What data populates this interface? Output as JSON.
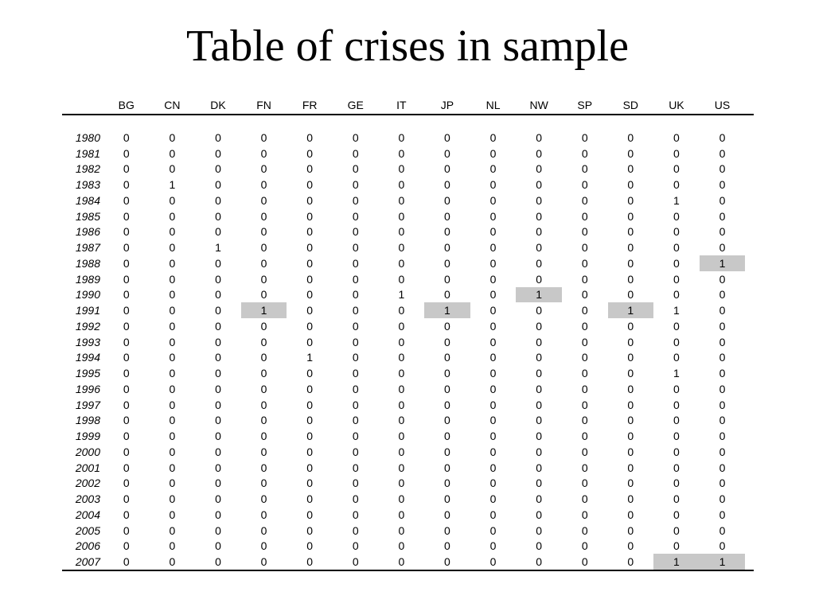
{
  "title": "Table of crises in sample",
  "countries": [
    "BG",
    "CN",
    "DK",
    "FN",
    "FR",
    "GE",
    "IT",
    "JP",
    "NL",
    "NW",
    "SP",
    "SD",
    "UK",
    "US"
  ],
  "rows": [
    {
      "year": "1980",
      "values": [
        "0",
        "0",
        "0",
        "0",
        "0",
        "0",
        "0",
        "0",
        "0",
        "0",
        "0",
        "0",
        "0",
        "0"
      ],
      "highlight": []
    },
    {
      "year": "1981",
      "values": [
        "0",
        "0",
        "0",
        "0",
        "0",
        "0",
        "0",
        "0",
        "0",
        "0",
        "0",
        "0",
        "0",
        "0"
      ],
      "highlight": []
    },
    {
      "year": "1982",
      "values": [
        "0",
        "0",
        "0",
        "0",
        "0",
        "0",
        "0",
        "0",
        "0",
        "0",
        "0",
        "0",
        "0",
        "0"
      ],
      "highlight": []
    },
    {
      "year": "1983",
      "values": [
        "0",
        "1",
        "0",
        "0",
        "0",
        "0",
        "0",
        "0",
        "0",
        "0",
        "0",
        "0",
        "0",
        "0"
      ],
      "highlight": []
    },
    {
      "year": "1984",
      "values": [
        "0",
        "0",
        "0",
        "0",
        "0",
        "0",
        "0",
        "0",
        "0",
        "0",
        "0",
        "0",
        "1",
        "0"
      ],
      "highlight": []
    },
    {
      "year": "1985",
      "values": [
        "0",
        "0",
        "0",
        "0",
        "0",
        "0",
        "0",
        "0",
        "0",
        "0",
        "0",
        "0",
        "0",
        "0"
      ],
      "highlight": []
    },
    {
      "year": "1986",
      "values": [
        "0",
        "0",
        "0",
        "0",
        "0",
        "0",
        "0",
        "0",
        "0",
        "0",
        "0",
        "0",
        "0",
        "0"
      ],
      "highlight": []
    },
    {
      "year": "1987",
      "values": [
        "0",
        "0",
        "1",
        "0",
        "0",
        "0",
        "0",
        "0",
        "0",
        "0",
        "0",
        "0",
        "0",
        "0"
      ],
      "highlight": []
    },
    {
      "year": "1988",
      "values": [
        "0",
        "0",
        "0",
        "0",
        "0",
        "0",
        "0",
        "0",
        "0",
        "0",
        "0",
        "0",
        "0",
        "1"
      ],
      "highlight": [
        13
      ]
    },
    {
      "year": "1989",
      "values": [
        "0",
        "0",
        "0",
        "0",
        "0",
        "0",
        "0",
        "0",
        "0",
        "0",
        "0",
        "0",
        "0",
        "0"
      ],
      "highlight": []
    },
    {
      "year": "1990",
      "values": [
        "0",
        "0",
        "0",
        "0",
        "0",
        "0",
        "1",
        "0",
        "0",
        "1",
        "0",
        "0",
        "0",
        "0"
      ],
      "highlight": [
        9
      ]
    },
    {
      "year": "1991",
      "values": [
        "0",
        "0",
        "0",
        "1",
        "0",
        "0",
        "0",
        "1",
        "0",
        "0",
        "0",
        "1",
        "1",
        "0"
      ],
      "highlight": [
        3,
        7,
        11
      ]
    },
    {
      "year": "1992",
      "values": [
        "0",
        "0",
        "0",
        "0",
        "0",
        "0",
        "0",
        "0",
        "0",
        "0",
        "0",
        "0",
        "0",
        "0"
      ],
      "highlight": []
    },
    {
      "year": "1993",
      "values": [
        "0",
        "0",
        "0",
        "0",
        "0",
        "0",
        "0",
        "0",
        "0",
        "0",
        "0",
        "0",
        "0",
        "0"
      ],
      "highlight": []
    },
    {
      "year": "1994",
      "values": [
        "0",
        "0",
        "0",
        "0",
        "1",
        "0",
        "0",
        "0",
        "0",
        "0",
        "0",
        "0",
        "0",
        "0"
      ],
      "highlight": []
    },
    {
      "year": "1995",
      "values": [
        "0",
        "0",
        "0",
        "0",
        "0",
        "0",
        "0",
        "0",
        "0",
        "0",
        "0",
        "0",
        "1",
        "0"
      ],
      "highlight": []
    },
    {
      "year": "1996",
      "values": [
        "0",
        "0",
        "0",
        "0",
        "0",
        "0",
        "0",
        "0",
        "0",
        "0",
        "0",
        "0",
        "0",
        "0"
      ],
      "highlight": []
    },
    {
      "year": "1997",
      "values": [
        "0",
        "0",
        "0",
        "0",
        "0",
        "0",
        "0",
        "0",
        "0",
        "0",
        "0",
        "0",
        "0",
        "0"
      ],
      "highlight": []
    },
    {
      "year": "1998",
      "values": [
        "0",
        "0",
        "0",
        "0",
        "0",
        "0",
        "0",
        "0",
        "0",
        "0",
        "0",
        "0",
        "0",
        "0"
      ],
      "highlight": []
    },
    {
      "year": "1999",
      "values": [
        "0",
        "0",
        "0",
        "0",
        "0",
        "0",
        "0",
        "0",
        "0",
        "0",
        "0",
        "0",
        "0",
        "0"
      ],
      "highlight": []
    },
    {
      "year": "2000",
      "values": [
        "0",
        "0",
        "0",
        "0",
        "0",
        "0",
        "0",
        "0",
        "0",
        "0",
        "0",
        "0",
        "0",
        "0"
      ],
      "highlight": []
    },
    {
      "year": "2001",
      "values": [
        "0",
        "0",
        "0",
        "0",
        "0",
        "0",
        "0",
        "0",
        "0",
        "0",
        "0",
        "0",
        "0",
        "0"
      ],
      "highlight": []
    },
    {
      "year": "2002",
      "values": [
        "0",
        "0",
        "0",
        "0",
        "0",
        "0",
        "0",
        "0",
        "0",
        "0",
        "0",
        "0",
        "0",
        "0"
      ],
      "highlight": []
    },
    {
      "year": "2003",
      "values": [
        "0",
        "0",
        "0",
        "0",
        "0",
        "0",
        "0",
        "0",
        "0",
        "0",
        "0",
        "0",
        "0",
        "0"
      ],
      "highlight": []
    },
    {
      "year": "2004",
      "values": [
        "0",
        "0",
        "0",
        "0",
        "0",
        "0",
        "0",
        "0",
        "0",
        "0",
        "0",
        "0",
        "0",
        "0"
      ],
      "highlight": []
    },
    {
      "year": "2005",
      "values": [
        "0",
        "0",
        "0",
        "0",
        "0",
        "0",
        "0",
        "0",
        "0",
        "0",
        "0",
        "0",
        "0",
        "0"
      ],
      "highlight": []
    },
    {
      "year": "2006",
      "values": [
        "0",
        "0",
        "0",
        "0",
        "0",
        "0",
        "0",
        "0",
        "0",
        "0",
        "0",
        "0",
        "0",
        "0"
      ],
      "highlight": []
    },
    {
      "year": "2007",
      "values": [
        "0",
        "0",
        "0",
        "0",
        "0",
        "0",
        "0",
        "0",
        "0",
        "0",
        "0",
        "0",
        "1",
        "1"
      ],
      "highlight": [
        12,
        13
      ]
    }
  ]
}
